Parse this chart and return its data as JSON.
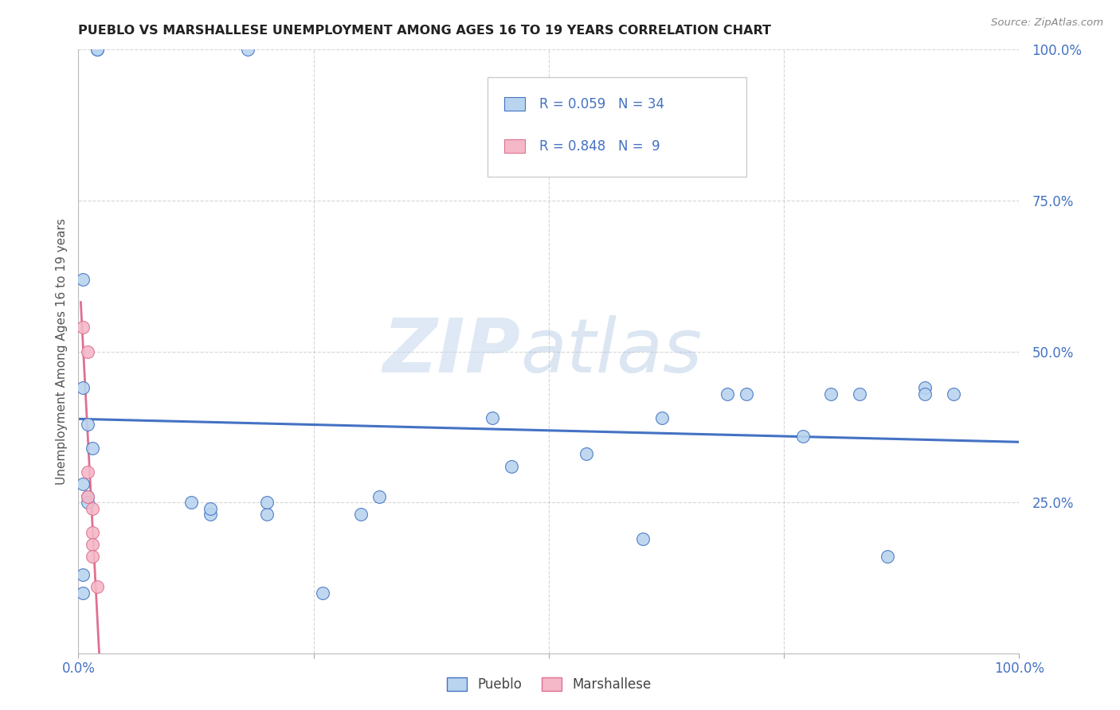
{
  "title": "PUEBLO VS MARSHALLESE UNEMPLOYMENT AMONG AGES 16 TO 19 YEARS CORRELATION CHART",
  "source": "Source: ZipAtlas.com",
  "ylabel": "Unemployment Among Ages 16 to 19 years",
  "xlim": [
    0.0,
    1.0
  ],
  "ylim": [
    0.0,
    1.0
  ],
  "xticks": [
    0.0,
    0.25,
    0.5,
    0.75,
    1.0
  ],
  "yticks": [
    0.0,
    0.25,
    0.5,
    0.75,
    1.0
  ],
  "xticklabels": [
    "0.0%",
    "",
    "",
    "",
    "100.0%"
  ],
  "yticklabels": [
    "",
    "25.0%",
    "50.0%",
    "75.0%",
    "100.0%"
  ],
  "pueblo_R": 0.059,
  "pueblo_N": 34,
  "marshallese_R": 0.848,
  "marshallese_N": 9,
  "pueblo_color": "#b8d4ee",
  "marshallese_color": "#f4b8c8",
  "pueblo_line_color": "#4472c4",
  "marshallese_line_color": "#e07090",
  "pueblo_x": [
    0.02,
    0.02,
    0.18,
    0.005,
    0.005,
    0.01,
    0.015,
    0.005,
    0.01,
    0.01,
    0.12,
    0.14,
    0.14,
    0.2,
    0.2,
    0.26,
    0.3,
    0.32,
    0.44,
    0.46,
    0.54,
    0.6,
    0.62,
    0.69,
    0.71,
    0.77,
    0.8,
    0.83,
    0.86,
    0.9,
    0.9,
    0.93,
    0.005,
    0.005
  ],
  "pueblo_y": [
    1.0,
    1.0,
    1.0,
    0.62,
    0.44,
    0.38,
    0.34,
    0.28,
    0.26,
    0.25,
    0.25,
    0.23,
    0.24,
    0.23,
    0.25,
    0.1,
    0.23,
    0.26,
    0.39,
    0.31,
    0.33,
    0.19,
    0.39,
    0.43,
    0.43,
    0.36,
    0.43,
    0.43,
    0.16,
    0.44,
    0.43,
    0.43,
    0.13,
    0.1
  ],
  "marshallese_x": [
    0.005,
    0.01,
    0.01,
    0.01,
    0.015,
    0.015,
    0.015,
    0.015,
    0.02
  ],
  "marshallese_y": [
    0.54,
    0.5,
    0.3,
    0.26,
    0.24,
    0.2,
    0.18,
    0.16,
    0.11
  ],
  "watermark_zip": "ZIP",
  "watermark_atlas": "atlas",
  "background_color": "#ffffff",
  "title_fontsize": 11.5,
  "tick_color": "#4472c4",
  "grid_color": "#cccccc",
  "legend_r_color": "#4472c4"
}
